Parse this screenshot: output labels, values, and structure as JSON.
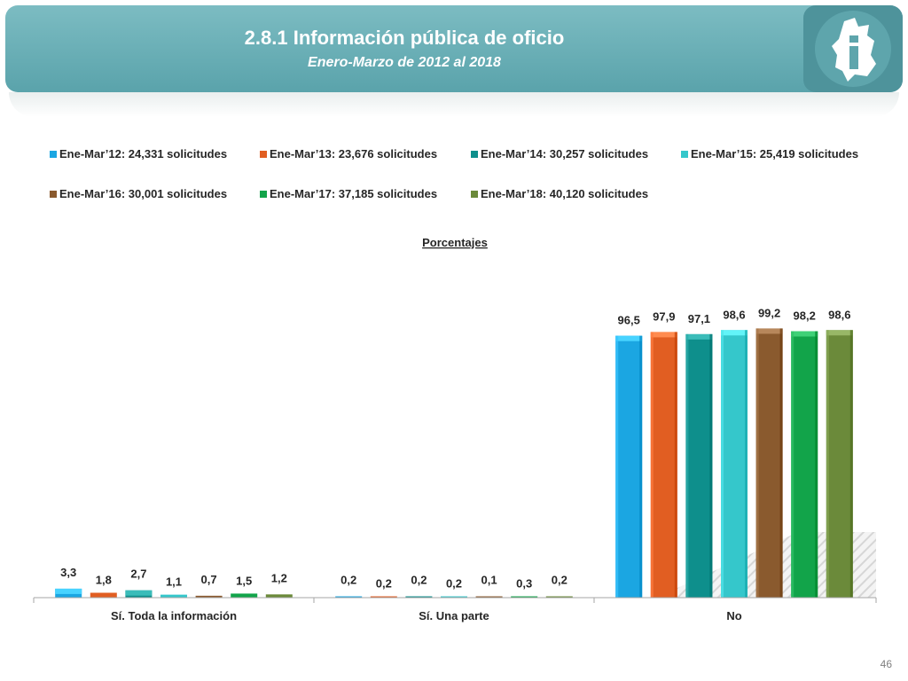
{
  "header": {
    "title": "2.8.1 Información pública de oficio",
    "subtitle": "Enero-Marzo de 2012 al 2018",
    "logo_icon": "city-emblem-icon"
  },
  "page_number": "46",
  "chart_data": {
    "type": "bar",
    "title": "Porcentajes",
    "categories": [
      "Sí. Toda la información",
      "Sí. Una parte",
      "No"
    ],
    "series": [
      {
        "name": "Ene-Mar’12: 24,331 solicitudes",
        "color": "#1ba6e2",
        "values": [
          3.3,
          0.2,
          96.5
        ],
        "labels": [
          "3,3",
          "0,2",
          "96,5"
        ]
      },
      {
        "name": "Ene-Mar’13: 23,676 solicitudes",
        "color": "#e15e22",
        "values": [
          1.8,
          0.2,
          97.9
        ],
        "labels": [
          "1,8",
          "0,2",
          "97,9"
        ]
      },
      {
        "name": "Ene-Mar’14: 30,257 solicitudes",
        "color": "#0e8f8c",
        "values": [
          2.7,
          0.2,
          97.1
        ],
        "labels": [
          "2,7",
          "0,2",
          "97,1"
        ]
      },
      {
        "name": "Ene-Mar’15: 25,419 solicitudes",
        "color": "#35c7cb",
        "values": [
          1.1,
          0.2,
          98.6
        ],
        "labels": [
          "1,1",
          "0,2",
          "98,6"
        ]
      },
      {
        "name": "Ene-Mar’16: 30,001 solicitudes",
        "color": "#8a5a2e",
        "values": [
          0.7,
          0.1,
          99.2
        ],
        "labels": [
          "0,7",
          "0,1",
          "99,2"
        ]
      },
      {
        "name": "Ene-Mar’17: 37,185 solicitudes",
        "color": "#12a44a",
        "values": [
          1.5,
          0.3,
          98.2
        ],
        "labels": [
          "1,5",
          "0,3",
          "98,2"
        ]
      },
      {
        "name": "Ene-Mar’18: 40,120 solicitudes",
        "color": "#6b8a3a",
        "values": [
          1.2,
          0.2,
          98.6
        ],
        "labels": [
          "1,2",
          "0,2",
          "98,6"
        ]
      }
    ],
    "ylim": [
      0,
      100
    ],
    "grid": false,
    "legend_position": "top"
  }
}
